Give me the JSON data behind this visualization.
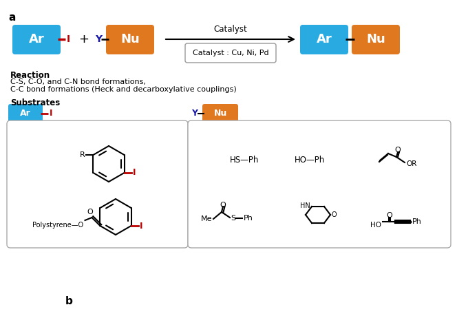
{
  "bg_color": "#ffffff",
  "cyan_color": "#29ABE2",
  "orange_color": "#E07820",
  "red_color": "#BB0000",
  "dark_blue": "#1a1aaa",
  "gray_box": "#aaaaaa",
  "label_a": "a",
  "label_b": "b",
  "reaction_title": "Reaction",
  "reaction_line1": "C-S, C-O, and C-N bond formations,",
  "reaction_line2": "C-C bond formations (Heck and decarboxylative couplings)",
  "substrates_title": "Substrates",
  "catalyst_label": "Catalyst",
  "catalyst_box_text": "Catalyst : Cu, Ni, Pd",
  "ar_text": "Ar",
  "nu_text": "Nu",
  "y_text": "Y",
  "i_text": "I",
  "plus_text": "+",
  "hs_ph": "HS—Ph",
  "ho_ph": "HO—Ph"
}
